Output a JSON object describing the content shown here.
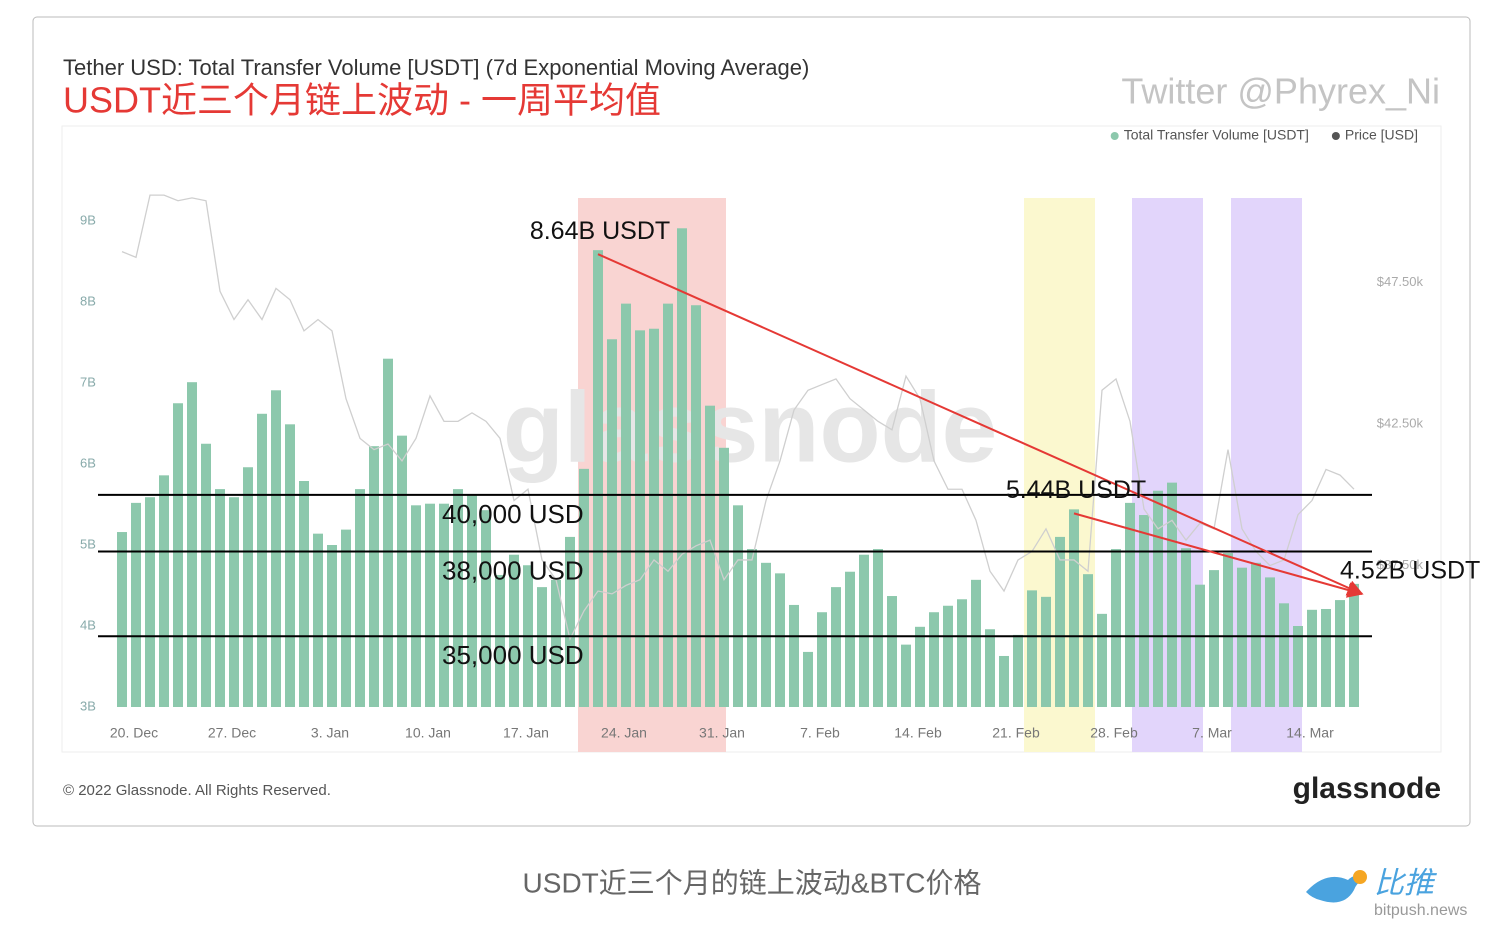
{
  "chart_data": {
    "type": "bar",
    "title": "Tether USD: Total Transfer Volume [USDT] (7d Exponential Moving Average)",
    "subtitle": "USDT近三个月链上波动 - 一周平均值",
    "author": "Twitter @Phyrex_Ni",
    "watermark": "glassnode",
    "copyright": "© 2022 Glassnode. All Rights Reserved.",
    "logo": "glassnode",
    "categories": [
      null,
      "20. Dec",
      null,
      null,
      null,
      null,
      null,
      null,
      "27. Dec",
      null,
      null,
      null,
      null,
      null,
      null,
      "3. Jan",
      null,
      null,
      null,
      null,
      null,
      null,
      "10. Jan",
      null,
      null,
      null,
      null,
      null,
      null,
      "17. Jan",
      null,
      null,
      null,
      null,
      null,
      null,
      "24. Jan",
      null,
      null,
      null,
      null,
      null,
      null,
      "31. Jan",
      null,
      null,
      null,
      null,
      null,
      null,
      "7. Feb",
      null,
      null,
      null,
      null,
      null,
      null,
      "14. Feb",
      null,
      null,
      null,
      null,
      null,
      null,
      "21. Feb",
      null,
      null,
      null,
      null,
      null,
      null,
      "28. Feb",
      null,
      null,
      null,
      null,
      null,
      null,
      "7. Mar",
      null,
      null,
      null,
      null,
      null,
      null,
      "14. Mar",
      null,
      null,
      null
    ],
    "series": [
      {
        "name": "Total Transfer Volume [USDT]",
        "type": "bar",
        "color": "#8cc8ac",
        "values": [
          5160000000.0,
          5520000000.0,
          5590000000.0,
          5860000000.0,
          6750000000.0,
          7010000000.0,
          6250000000.0,
          5690000000.0,
          5590000000.0,
          5960000000.0,
          6620000000.0,
          6910000000.0,
          6490000000.0,
          5790000000.0,
          5140000000.0,
          5000000000.0,
          5190000000.0,
          5690000000.0,
          6220000000.0,
          7300000000.0,
          6350000000.0,
          5490000000.0,
          5510000000.0,
          5510000000.0,
          5690000000.0,
          5620000000.0,
          5430000000.0,
          4630000000.0,
          4880000000.0,
          4750000000.0,
          4480000000.0,
          4570000000.0,
          5100000000.0,
          5940000000.0,
          8640000000.0,
          7540000000.0,
          7980000000.0,
          7650000000.0,
          7670000000.0,
          7980000000.0,
          8910000000.0,
          7960000000.0,
          6720000000.0,
          6200000000.0,
          5490000000.0,
          4950000000.0,
          4780000000.0,
          4650000000.0,
          4260000000.0,
          3680000000.0,
          4170000000.0,
          4480000000.0,
          4670000000.0,
          4880000000.0,
          4950000000.0,
          4370000000.0,
          3770000000.0,
          3990000000.0,
          4170000000.0,
          4250000000.0,
          4330000000.0,
          4570000000.0,
          3960000000.0,
          3630000000.0,
          3890000000.0,
          4440000000.0,
          4360000000.0,
          5100000000.0,
          5440000000.0,
          4640000000.0,
          4150000000.0,
          4950000000.0,
          5520000000.0,
          5370000000.0,
          5670000000.0,
          5770000000.0,
          4960000000.0,
          4510000000.0,
          4690000000.0,
          4900000000.0,
          4720000000.0,
          4780000000.0,
          4600000000.0,
          4280000000.0,
          4000000000.0,
          4200000000.0,
          4210000000.0,
          4320000000.0,
          4520000000.0
        ]
      },
      {
        "name": "Price [USD]",
        "type": "line",
        "axis": "y2",
        "color": "#cfcfcf",
        "legend_color": "#555555",
        "values": [
          48600,
          48400,
          50600,
          50600,
          50400,
          50500,
          50400,
          47200,
          46200,
          46900,
          46200,
          47300,
          46900,
          45800,
          46200,
          45800,
          43400,
          42000,
          41600,
          41800,
          41200,
          42000,
          43500,
          42600,
          42600,
          42900,
          42600,
          42000,
          39800,
          40200,
          37700,
          37000,
          34900,
          35900,
          36600,
          36500,
          36800,
          37000,
          37700,
          37300,
          37900,
          38200,
          38400,
          37000,
          37700,
          37700,
          39800,
          41200,
          43000,
          43700,
          43900,
          44100,
          43400,
          43000,
          42600,
          42300,
          44200,
          43400,
          41200,
          40200,
          40200,
          39100,
          37300,
          36600,
          37700,
          38000,
          38800,
          37700,
          37700,
          37300,
          43700,
          44100,
          42600,
          39500,
          38800,
          39100,
          38400,
          39000,
          38800,
          41600,
          38800,
          38000,
          37500,
          37700,
          39300,
          39800,
          40900,
          40700,
          40200
        ]
      }
    ],
    "ylim": [
      3000000000.0,
      9250000000.0
    ],
    "yticks": [
      {
        "value": 3000000000.0,
        "label": "3B"
      },
      {
        "value": 4000000000.0,
        "label": "4B"
      },
      {
        "value": 5000000000.0,
        "label": "5B"
      },
      {
        "value": 6000000000.0,
        "label": "6B"
      },
      {
        "value": 7000000000.0,
        "label": "7B"
      },
      {
        "value": 8000000000.0,
        "label": "8B"
      },
      {
        "value": 9000000000.0,
        "label": "9B"
      }
    ],
    "y2lim": [
      32500,
      50400
    ],
    "y2ticks": [
      {
        "value": 37500,
        "label": "$37.50k"
      },
      {
        "value": 42500,
        "label": "$42.50k"
      },
      {
        "value": 47500,
        "label": "$47.50k"
      }
    ],
    "grid": false,
    "legend": "top-right",
    "annotations": [
      {
        "text": "8.64B USDT",
        "value": 8640000000.0
      },
      {
        "text": "5.44B USDT",
        "value": 5440000000.0
      },
      {
        "text": "4.52B USDT",
        "value": 4520000000.0
      }
    ],
    "levels": [
      {
        "value": 40000,
        "label": "40,000 USD"
      },
      {
        "value": 38000,
        "label": "38,000 USD"
      },
      {
        "value": 35000,
        "label": "35,000 USD"
      }
    ]
  },
  "caption": "USDT近三个月的链上波动&BTC价格",
  "source": {
    "name": "比推",
    "site": "bitpush.news"
  }
}
